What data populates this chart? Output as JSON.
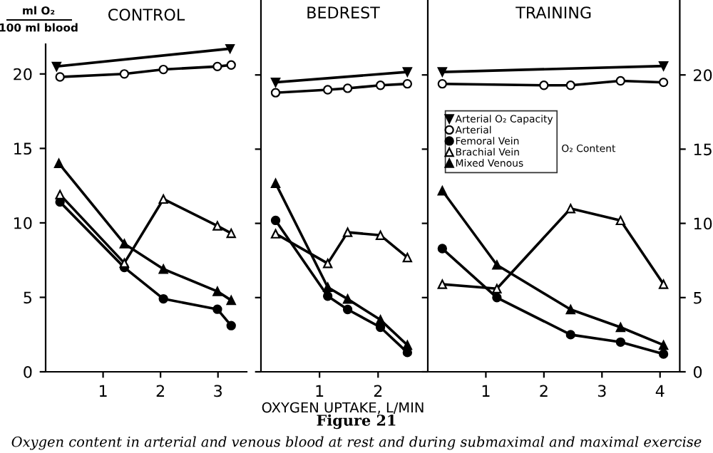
{
  "chart_data": [
    {
      "type": "line",
      "title": "CONTROL",
      "ylabel": "ml O₂\n100 ml blood",
      "xlim": [
        0,
        3.5
      ],
      "xticks": [
        1,
        2,
        3
      ],
      "ylim": [
        0,
        22
      ],
      "yticks": [
        0,
        5,
        10,
        15,
        20
      ],
      "grid": false,
      "legend": false,
      "series": [
        {
          "x": [
            0.19,
            3.21
          ],
          "values": [
            20.5,
            21.7
          ],
          "color": "#000000",
          "marker": "triangle_down"
        },
        {
          "x": [
            0.25,
            1.37,
            2.05,
            2.99,
            3.23
          ],
          "values": [
            19.8,
            20.0,
            20.3,
            20.5,
            20.6
          ],
          "color": "#000000",
          "marker": "circle open"
        },
        {
          "x": [
            0.25,
            1.37,
            2.05,
            2.99,
            3.23
          ],
          "values": [
            11.4,
            7.0,
            4.9,
            4.2,
            3.1
          ],
          "color": "#000000",
          "marker": "circle"
        },
        {
          "x": [
            0.25,
            1.37,
            2.05,
            2.99,
            3.23
          ],
          "values": [
            11.9,
            7.3,
            11.6,
            9.8,
            9.3
          ],
          "color": "#000000",
          "marker": "triangle open"
        },
        {
          "x": [
            0.23,
            1.37,
            2.05,
            2.99,
            3.23
          ],
          "values": [
            14.0,
            8.6,
            6.9,
            5.4,
            4.8
          ],
          "color": "#000000",
          "marker": "triangle"
        }
      ]
    },
    {
      "type": "line",
      "title": "BEDREST",
      "xlabel": "OXYGEN UPTAKE, L/MIN",
      "xlim": [
        0,
        2.8
      ],
      "xticks": [
        1,
        2
      ],
      "ylim": [
        0,
        25
      ],
      "yticks": [
        0,
        5,
        10,
        15,
        20
      ],
      "tick_labels": "x",
      "grid": false,
      "legend": false,
      "series": [
        {
          "x": [
            0.25,
            2.5
          ],
          "values": [
            19.5,
            20.2
          ],
          "color": "#000000",
          "marker": "triangle_down"
        },
        {
          "x": [
            0.25,
            1.14,
            1.48,
            2.04,
            2.5
          ],
          "values": [
            18.8,
            19.0,
            19.1,
            19.3,
            19.4
          ],
          "color": "#000000",
          "marker": "circle open"
        },
        {
          "x": [
            0.25,
            1.14,
            1.48,
            2.04,
            2.5
          ],
          "values": [
            10.2,
            5.1,
            4.2,
            3.0,
            1.3
          ],
          "color": "#000000",
          "marker": "circle"
        },
        {
          "x": [
            0.25,
            1.14,
            1.48,
            2.04,
            2.5
          ],
          "values": [
            9.3,
            7.3,
            9.4,
            9.2,
            7.7
          ],
          "color": "#000000",
          "marker": "triangle open"
        },
        {
          "x": [
            0.25,
            1.14,
            1.48,
            2.04,
            2.5
          ],
          "values": [
            12.7,
            5.7,
            4.9,
            3.5,
            1.8
          ],
          "color": "#000000",
          "marker": "triangle"
        }
      ]
    },
    {
      "type": "line",
      "title": "TRAINING",
      "xlim": [
        0,
        4.34
      ],
      "xticks": [
        1,
        2,
        3,
        4
      ],
      "ylim": [
        0,
        25
      ],
      "yticks": [
        0,
        5,
        10,
        15,
        20
      ],
      "grid": false,
      "legend": "center left",
      "annotations": [
        "O₂ Content",
        "Figure 21",
        "Oxygen content in arterial and venous blood at rest and during submaximal and maximal exercise"
      ],
      "series": [
        {
          "name": "Arterial O₂ Capacity",
          "x": [
            0.25,
            4.06
          ],
          "values": [
            20.2,
            20.6
          ],
          "color": "#000000",
          "marker": "triangle_down"
        },
        {
          "name": "Arterial",
          "x": [
            0.25,
            2.0,
            2.46,
            3.32,
            4.06
          ],
          "values": [
            19.4,
            19.3,
            19.3,
            19.6,
            19.5
          ],
          "color": "#000000",
          "marker": "circle open"
        },
        {
          "name": "Femoral Vein",
          "x": [
            0.25,
            1.19,
            2.46,
            3.32,
            4.06
          ],
          "values": [
            8.3,
            5.0,
            2.5,
            2.0,
            1.2
          ],
          "color": "#000000",
          "marker": "circle"
        },
        {
          "name": "Brachial Vein",
          "x": [
            0.25,
            1.19,
            2.46,
            3.32,
            4.06
          ],
          "values": [
            5.9,
            5.6,
            11.0,
            10.2,
            5.9
          ],
          "color": "#000000",
          "marker": "triangle open"
        },
        {
          "name": "Mixed Venous",
          "x": [
            0.25,
            1.19,
            2.46,
            3.32,
            4.06
          ],
          "values": [
            12.2,
            7.2,
            4.2,
            3.0,
            1.8
          ],
          "color": "#000000",
          "marker": "triangle"
        }
      ]
    }
  ]
}
